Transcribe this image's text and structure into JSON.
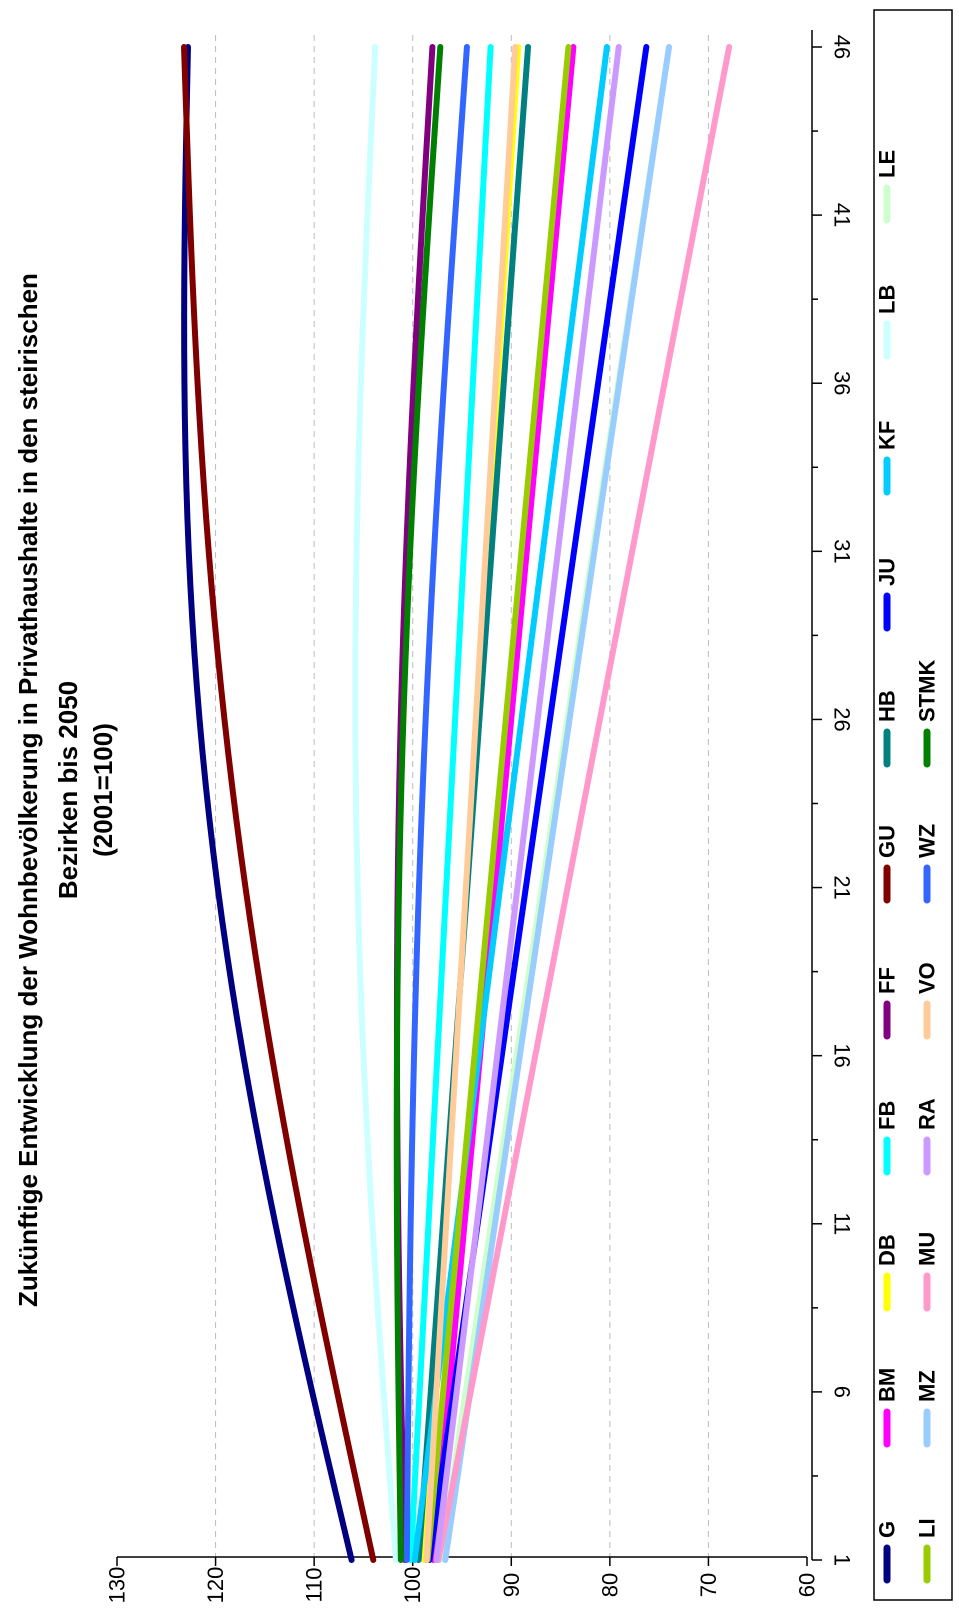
{
  "chart_data": {
    "type": "line",
    "title_lines": [
      "Zukünftige Entwicklung der Wohnbevölkerung in Privathaushalte in den steirischen",
      "Bezirken bis 2050",
      "(2001=100)"
    ],
    "xlabel": "",
    "ylabel": "",
    "ylim": [
      60,
      130
    ],
    "y_ticks": [
      "60",
      "70",
      "80",
      "90",
      "100",
      "110",
      "120",
      "130"
    ],
    "x_ticks": [
      "1",
      "6",
      "11",
      "16",
      "21",
      "26",
      "31",
      "36",
      "41",
      "46"
    ],
    "x_range": [
      1,
      46
    ],
    "grid": true,
    "legend_position": "bottom",
    "series": [
      {
        "name": "G",
        "color": "#000080",
        "start": 106.2,
        "end": 122.8,
        "curve": 7
      },
      {
        "name": "BM",
        "color": "#ff00ff",
        "start": 97.9,
        "end": 83.7,
        "curve": 0
      },
      {
        "name": "DB",
        "color": "#ffff00",
        "start": 98.8,
        "end": 89.3,
        "curve": 0
      },
      {
        "name": "FB",
        "color": "#00ffff",
        "start": 100.2,
        "end": 92.1,
        "curve": 0
      },
      {
        "name": "FF",
        "color": "#800080",
        "start": 100.8,
        "end": 98.0,
        "curve": 2
      },
      {
        "name": "GU",
        "color": "#800000",
        "start": 104.0,
        "end": 123.2,
        "curve": 5
      },
      {
        "name": "HB",
        "color": "#008080",
        "start": 99.4,
        "end": 88.3,
        "curve": 0
      },
      {
        "name": "JU",
        "color": "#0000ff",
        "start": 98.3,
        "end": 76.3,
        "curve": 0
      },
      {
        "name": "KF",
        "color": "#00ccff",
        "start": 99.8,
        "end": 80.3,
        "curve": 0
      },
      {
        "name": "LB",
        "color": "#ccffff",
        "start": 101.7,
        "end": 103.8,
        "curve": 3
      },
      {
        "name": "LE",
        "color": "#ccffcc",
        "start": 97.2,
        "end": 74.0,
        "curve": 0
      },
      {
        "name": "LI",
        "color": "#99cc00",
        "start": 98.5,
        "end": 84.2,
        "curve": 0
      },
      {
        "name": "MZ",
        "color": "#99ccff",
        "start": 96.7,
        "end": 74.0,
        "curve": 0
      },
      {
        "name": "MU",
        "color": "#ff99cc",
        "start": 97.4,
        "end": 67.9,
        "curve": 0
      },
      {
        "name": "RA",
        "color": "#cc99ff",
        "start": 97.6,
        "end": 79.1,
        "curve": 0
      },
      {
        "name": "VO",
        "color": "#ffcc99",
        "start": 98.6,
        "end": 89.6,
        "curve": 0
      },
      {
        "name": "WZ",
        "color": "#3366ff",
        "start": 100.6,
        "end": 94.5,
        "curve": 1.5
      },
      {
        "name": "STMK",
        "color": "#008000",
        "start": 101.2,
        "end": 97.2,
        "curve": 2
      }
    ],
    "legend_rows": [
      [
        "G",
        "BM",
        "DB",
        "FB",
        "FF",
        "GU",
        "HB",
        "JU",
        "KF",
        "LB",
        "LE"
      ],
      [
        "LI",
        "MZ",
        "MU",
        "RA",
        "VO",
        "WZ",
        "STMK"
      ]
    ]
  }
}
